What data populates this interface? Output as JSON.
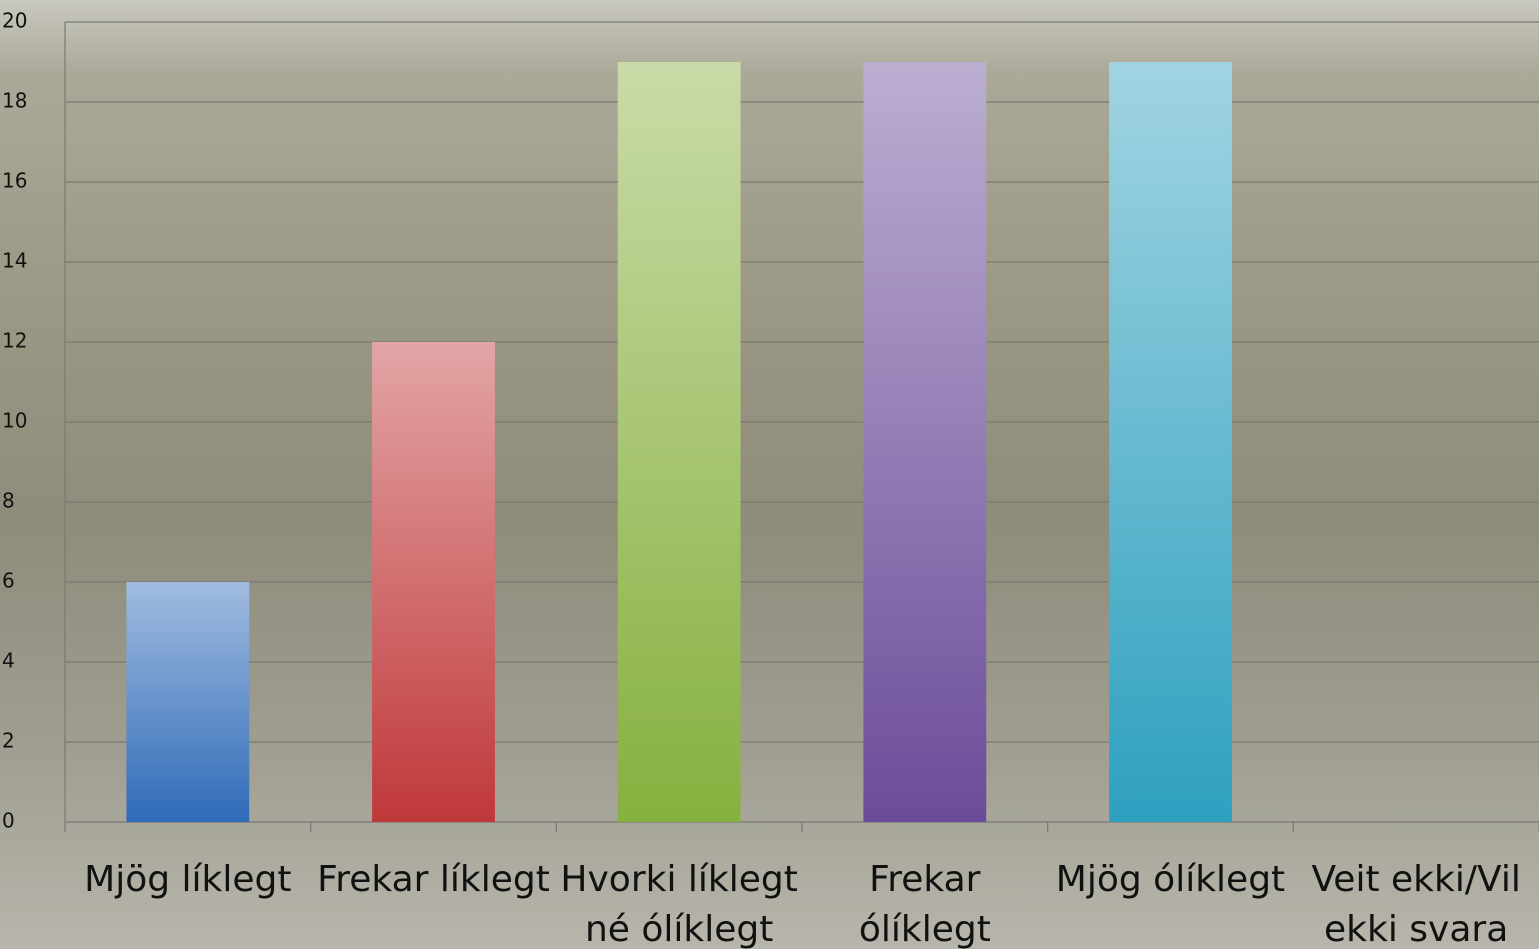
{
  "chart_data": {
    "type": "bar",
    "categories": [
      "Mjög líklegt",
      "Frekar líklegt",
      "Hvorki líklegt né ólíklegt",
      "Frekar ólíklegt",
      "Mjög ólíklegt",
      "Veit ekki/Vil ekki svara"
    ],
    "values": [
      6,
      12,
      19,
      19,
      19,
      0
    ],
    "colors": [
      "#2f6bb8",
      "#c0383a",
      "#86b03e",
      "#6b4c99",
      "#2ea0bf",
      "#2f6bb8"
    ],
    "ylim": [
      0,
      20
    ],
    "yticks": [
      0,
      2,
      4,
      6,
      8,
      10,
      12,
      14,
      16,
      18,
      20
    ],
    "grid": true
  }
}
